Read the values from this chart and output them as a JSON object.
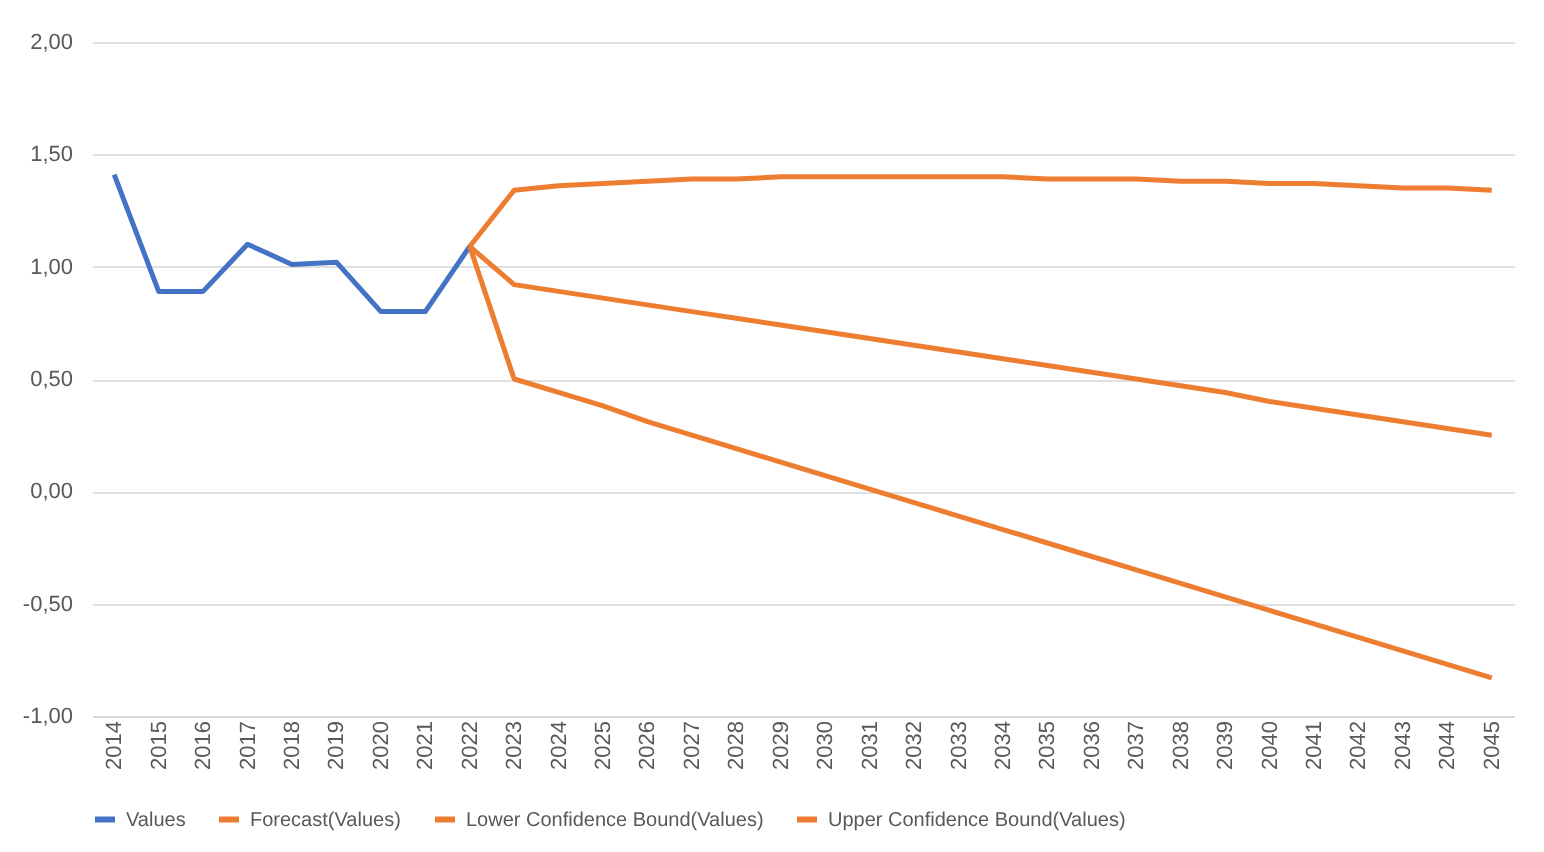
{
  "chart_data": {
    "type": "line",
    "categories": [
      "2014",
      "2015",
      "2016",
      "2017",
      "2018",
      "2019",
      "2020",
      "2021",
      "2022",
      "2023",
      "2024",
      "2025",
      "2026",
      "2027",
      "2028",
      "2029",
      "2030",
      "2031",
      "2032",
      "2033",
      "2034",
      "2035",
      "2036",
      "2037",
      "2038",
      "2039",
      "2040",
      "2041",
      "2042",
      "2043",
      "2044",
      "2045"
    ],
    "series": [
      {
        "name": "Values",
        "color": "#4472c4",
        "values": [
          1.41,
          0.89,
          0.89,
          1.1,
          1.01,
          1.02,
          0.8,
          0.8,
          1.09,
          null,
          null,
          null,
          null,
          null,
          null,
          null,
          null,
          null,
          null,
          null,
          null,
          null,
          null,
          null,
          null,
          null,
          null,
          null,
          null,
          null,
          null,
          null
        ]
      },
      {
        "name": "Forecast(Values)",
        "color": "#ed7d31",
        "values": [
          null,
          null,
          null,
          null,
          null,
          null,
          null,
          null,
          1.09,
          0.92,
          0.89,
          0.86,
          0.83,
          0.8,
          0.77,
          0.74,
          0.71,
          0.68,
          0.65,
          0.62,
          0.59,
          0.56,
          0.53,
          0.5,
          0.47,
          0.44,
          0.4,
          0.37,
          0.34,
          0.31,
          0.28,
          0.25
        ]
      },
      {
        "name": "Lower Confidence Bound(Values)",
        "color": "#ed7d31",
        "values": [
          null,
          null,
          null,
          null,
          null,
          null,
          null,
          null,
          1.09,
          0.5,
          0.44,
          0.38,
          0.31,
          0.25,
          0.19,
          0.13,
          0.07,
          0.01,
          -0.05,
          -0.11,
          -0.17,
          -0.23,
          -0.29,
          -0.35,
          -0.41,
          -0.47,
          -0.53,
          -0.59,
          -0.65,
          -0.71,
          -0.77,
          -0.83
        ]
      },
      {
        "name": "Upper Confidence Bound(Values)",
        "color": "#ed7d31",
        "values": [
          null,
          null,
          null,
          null,
          null,
          null,
          null,
          null,
          1.09,
          1.34,
          1.36,
          1.37,
          1.38,
          1.39,
          1.39,
          1.4,
          1.4,
          1.4,
          1.4,
          1.4,
          1.4,
          1.39,
          1.39,
          1.39,
          1.38,
          1.38,
          1.37,
          1.37,
          1.36,
          1.35,
          1.35,
          1.34
        ]
      }
    ],
    "ylim": [
      -1.0,
      2.0
    ],
    "yticks": [
      {
        "value": -1.0,
        "label": "-1,00"
      },
      {
        "value": -0.5,
        "label": "-0,50"
      },
      {
        "value": 0,
        "label": "0,00"
      },
      {
        "value": 0.5,
        "label": "0,50"
      },
      {
        "value": 1.0,
        "label": "1,00"
      },
      {
        "value": 1.5,
        "label": "1,50"
      },
      {
        "value": 2.0,
        "label": "2,00"
      }
    ],
    "grid": "y",
    "legend": "bottom",
    "marker": "none",
    "line_style": "solid"
  }
}
